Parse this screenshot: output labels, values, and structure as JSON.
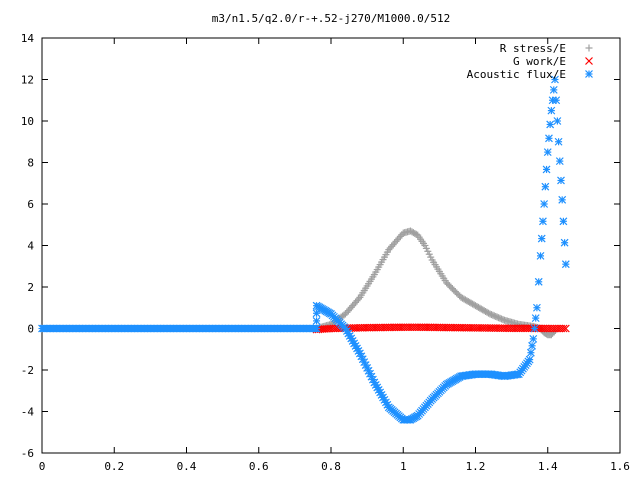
{
  "chart_data": {
    "type": "scatter",
    "title": "m3/n1.5/q2.0/r-+.52-j270/M1000.0/512",
    "xlabel": "",
    "ylabel": "",
    "xlim": [
      0,
      1.6
    ],
    "ylim": [
      -6,
      14
    ],
    "x_ticks": [
      0,
      0.2,
      0.4,
      0.6,
      0.8,
      1,
      1.2,
      1.4,
      1.6
    ],
    "x_tick_labels": [
      "0",
      "0.2",
      "0.4",
      "0.6",
      "0.8",
      "1",
      "1.2",
      "1.4",
      "1.6"
    ],
    "y_ticks": [
      -6,
      -4,
      -2,
      0,
      2,
      4,
      6,
      8,
      10,
      12,
      14
    ],
    "y_tick_labels": [
      "-6",
      "-4",
      "-2",
      "0",
      "2",
      "4",
      "6",
      "8",
      "10",
      "12",
      "14"
    ],
    "grid": false,
    "legend_position": "top-right",
    "series": [
      {
        "name": "R stress/E",
        "marker": "plus",
        "color": "#a0a0a0",
        "x": [
          0.76,
          0.8,
          0.84,
          0.88,
          0.92,
          0.96,
          1.0,
          1.02,
          1.04,
          1.06,
          1.08,
          1.12,
          1.16,
          1.2,
          1.24,
          1.28,
          1.32,
          1.36,
          1.38,
          1.39,
          1.4,
          1.41,
          1.42
        ],
        "y": [
          0.0,
          0.2,
          0.7,
          1.5,
          2.6,
          3.8,
          4.6,
          4.7,
          4.5,
          4.0,
          3.3,
          2.2,
          1.5,
          1.1,
          0.7,
          0.4,
          0.2,
          0.1,
          0.0,
          -0.2,
          -0.3,
          -0.3,
          -0.1
        ]
      },
      {
        "name": "G work/E",
        "marker": "cross",
        "color": "#ff0000",
        "x": [
          0.76,
          0.8,
          0.85,
          0.9,
          0.95,
          1.0,
          1.05,
          1.1,
          1.15,
          1.2,
          1.25,
          1.3,
          1.35,
          1.4,
          1.45
        ],
        "y": [
          -0.05,
          0.0,
          0.02,
          0.04,
          0.05,
          0.06,
          0.06,
          0.05,
          0.04,
          0.03,
          0.02,
          0.01,
          0.01,
          0.0,
          0.0
        ]
      },
      {
        "name": "Acoustic flux/E",
        "marker": "star",
        "color": "#1e90ff",
        "x": [
          0.0,
          0.1,
          0.2,
          0.3,
          0.4,
          0.5,
          0.6,
          0.7,
          0.76,
          0.76,
          0.8,
          0.84,
          0.88,
          0.92,
          0.96,
          1.0,
          1.02,
          1.04,
          1.08,
          1.12,
          1.16,
          1.2,
          1.24,
          1.28,
          1.32,
          1.35,
          1.36,
          1.37,
          1.38,
          1.39,
          1.4,
          1.41,
          1.42,
          1.43,
          1.44,
          1.45
        ],
        "y": [
          0.0,
          0.0,
          0.0,
          0.0,
          0.0,
          0.0,
          0.0,
          0.0,
          0.0,
          1.1,
          0.7,
          0.0,
          -1.2,
          -2.6,
          -3.8,
          -4.4,
          -4.4,
          -4.2,
          -3.4,
          -2.7,
          -2.3,
          -2.2,
          -2.2,
          -2.3,
          -2.2,
          -1.5,
          -0.5,
          1.0,
          3.5,
          6.0,
          8.5,
          10.5,
          12.0,
          9.0,
          6.2,
          3.1
        ]
      }
    ]
  }
}
